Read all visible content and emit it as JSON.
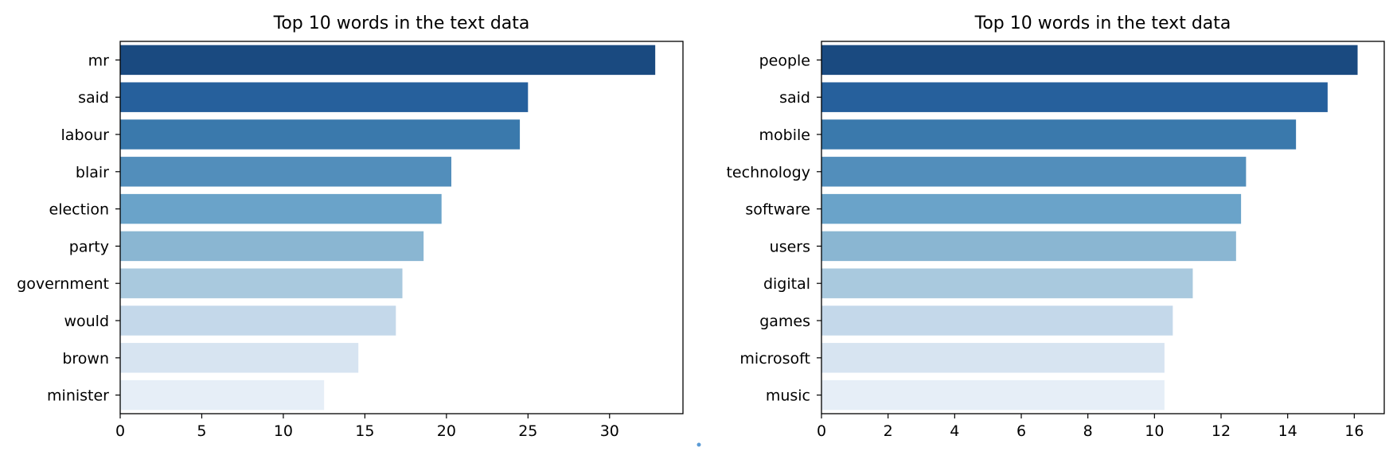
{
  "chart_data": [
    {
      "type": "bar",
      "orientation": "horizontal",
      "title": "Top 10 words in the text data",
      "xlabel": "",
      "ylabel": "",
      "categories": [
        "mr",
        "said",
        "labour",
        "blair",
        "election",
        "party",
        "government",
        "would",
        "brown",
        "minister"
      ],
      "values": [
        32.8,
        25.0,
        24.5,
        20.3,
        19.7,
        18.6,
        17.3,
        16.9,
        14.6,
        12.5
      ],
      "xlim": [
        0,
        34.5
      ],
      "xticks": [
        0,
        5,
        10,
        15,
        20,
        25,
        30
      ],
      "colors": [
        "#1a4a80",
        "#26609c",
        "#3a79ac",
        "#528ebb",
        "#6aa3c9",
        "#8ab6d2",
        "#a9c9de",
        "#c4d8ea",
        "#d7e4f1",
        "#e6eef7"
      ],
      "grid": false
    },
    {
      "type": "bar",
      "orientation": "horizontal",
      "title": "Top 10 words in the text data",
      "xlabel": "",
      "ylabel": "",
      "categories": [
        "people",
        "said",
        "mobile",
        "technology",
        "software",
        "users",
        "digital",
        "games",
        "microsoft",
        "music"
      ],
      "values": [
        16.1,
        15.2,
        14.25,
        12.75,
        12.6,
        12.45,
        11.15,
        10.55,
        10.3,
        10.3
      ],
      "xlim": [
        0,
        16.9
      ],
      "xticks": [
        0,
        2,
        4,
        6,
        8,
        10,
        12,
        14,
        16
      ],
      "colors": [
        "#1a4a80",
        "#26609c",
        "#3a79ac",
        "#528ebb",
        "#6aa3c9",
        "#8ab6d2",
        "#a9c9de",
        "#c4d8ea",
        "#d7e4f1",
        "#e6eef7"
      ],
      "grid": false
    }
  ]
}
